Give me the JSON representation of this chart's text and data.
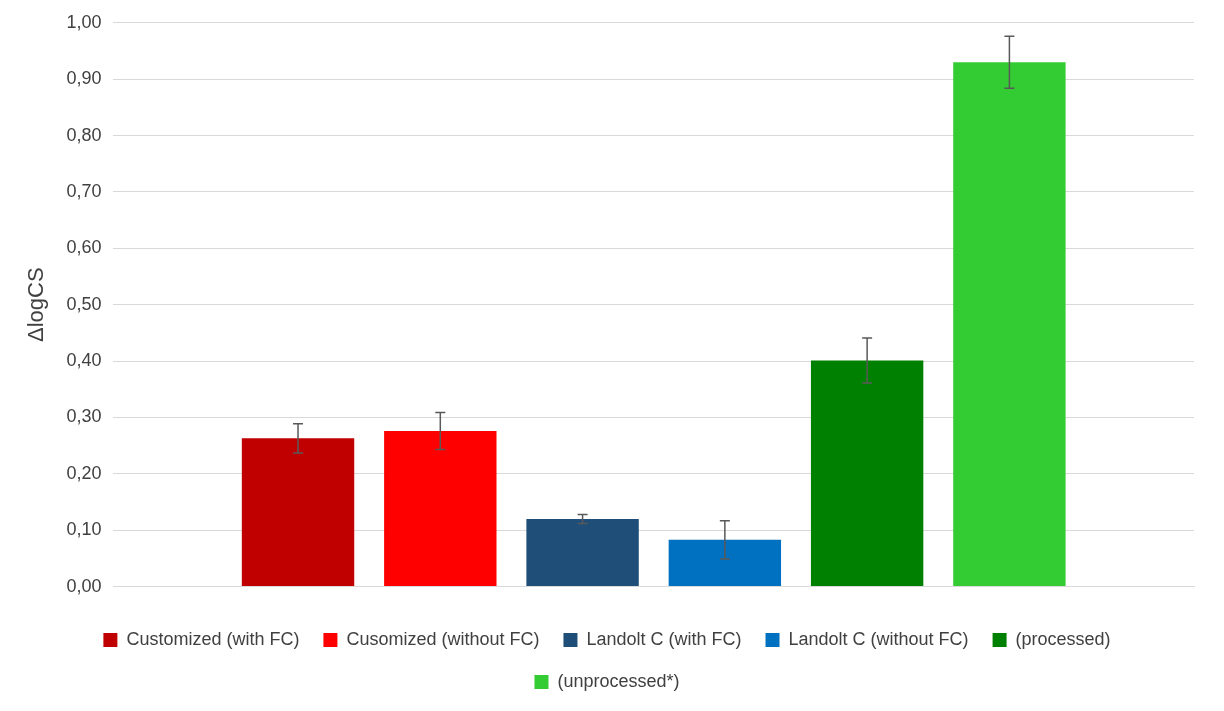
{
  "chart_data": {
    "type": "bar",
    "ylabel": "ΔlogCS",
    "categories": [
      null
    ],
    "series": [
      {
        "name": "Customized (with FC)",
        "color": "#c00000",
        "values": [
          0.263
        ],
        "errors": [
          0.026
        ]
      },
      {
        "name": "Cusomized (without FC)",
        "color": "#ff0000",
        "values": [
          0.276
        ],
        "errors": [
          0.033
        ]
      },
      {
        "name": "Landolt C (with FC)",
        "color": "#1f4e79",
        "values": [
          0.12
        ],
        "errors": [
          0.008
        ]
      },
      {
        "name": "Landolt C (without FC)",
        "color": "#0070c0",
        "values": [
          0.083
        ],
        "errors": [
          0.034
        ]
      },
      {
        "name": "(processed)",
        "color": "#008000",
        "values": [
          0.401
        ],
        "errors": [
          0.04
        ]
      },
      {
        "name": "(unprocessed*)",
        "color": "#33cc33",
        "values": [
          0.93
        ],
        "errors": [
          0.046
        ]
      }
    ],
    "ylim": [
      0,
      1
    ],
    "yticks": [
      {
        "value": 0,
        "label": "0,00"
      },
      {
        "value": 0.1,
        "label": "0,10"
      },
      {
        "value": 0.2,
        "label": "0,20"
      },
      {
        "value": 0.3,
        "label": "0,30"
      },
      {
        "value": 0.4,
        "label": "0,40"
      },
      {
        "value": 0.5,
        "label": "0,50"
      },
      {
        "value": 0.6,
        "label": "0,60"
      },
      {
        "value": 0.7,
        "label": "0,70"
      },
      {
        "value": 0.8,
        "label": "0,80"
      },
      {
        "value": 0.9,
        "label": "0,90"
      },
      {
        "value": 1,
        "label": "1,00"
      }
    ],
    "grid": "y",
    "legend": "bottom"
  }
}
